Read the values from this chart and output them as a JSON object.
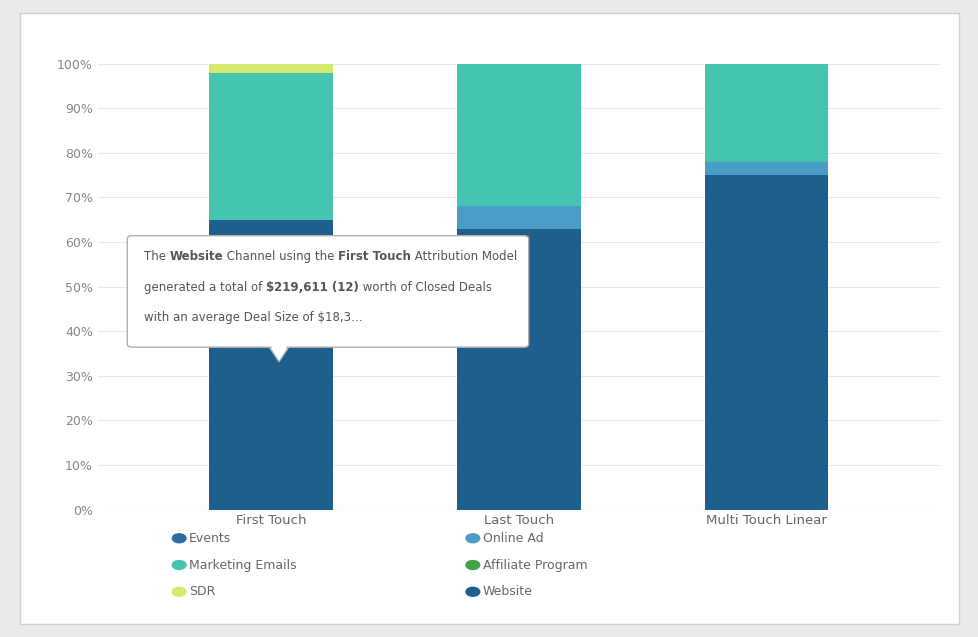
{
  "categories": [
    "First Touch",
    "Last Touch",
    "Multi Touch Linear"
  ],
  "segments": {
    "Website": {
      "values": [
        65.0,
        63.0,
        75.0
      ],
      "color": "#1e5f8e"
    },
    "Online Ad": {
      "values": [
        0.0,
        5.0,
        3.0
      ],
      "color": "#4a9cc7"
    },
    "Marketing Emails": {
      "values": [
        33.0,
        32.0,
        22.0
      ],
      "color": "#45c4b0"
    },
    "SDR": {
      "values": [
        2.0,
        0.0,
        0.0
      ],
      "color": "#d6e96c"
    },
    "Affiliate Program": {
      "values": [
        0.0,
        0.0,
        0.0
      ],
      "color": "#43a047"
    },
    "Events": {
      "values": [
        0.0,
        0.0,
        0.0
      ],
      "color": "#2e6da4"
    }
  },
  "segment_order": [
    "Website",
    "Online Ad",
    "Marketing Emails",
    "SDR",
    "Affiliate Program",
    "Events"
  ],
  "legend_items": [
    {
      "label": "Events",
      "color": "#2e6da4"
    },
    {
      "label": "Marketing Emails",
      "color": "#45c4b0"
    },
    {
      "label": "SDR",
      "color": "#d6e96c"
    },
    {
      "label": "Online Ad",
      "color": "#4a9cc7"
    },
    {
      "label": "Affiliate Program",
      "color": "#43a047"
    },
    {
      "label": "Website",
      "color": "#1e5f8e"
    }
  ],
  "background_color": "#ebebeb",
  "card_color": "#ffffff",
  "plot_background": "#ffffff",
  "grid_color": "#e8e8e8",
  "bar_width": 0.5,
  "ylim": [
    0,
    100
  ],
  "yticks": [
    0,
    10,
    20,
    30,
    40,
    50,
    60,
    70,
    80,
    90,
    100
  ],
  "ytick_labels": [
    "0%",
    "10%",
    "20%",
    "30%",
    "40%",
    "50%",
    "60%",
    "70%",
    "80%",
    "90%",
    "100%"
  ],
  "xlabel": "",
  "ylabel": "",
  "tooltip": {
    "line1": [
      [
        "The ",
        false
      ],
      [
        "Website",
        true
      ],
      [
        " Channel using the ",
        false
      ],
      [
        "First Touch",
        true
      ],
      [
        " Attribution Model",
        false
      ]
    ],
    "line2": [
      [
        "generated a total of ",
        false
      ],
      [
        "$219,611 (12)",
        true
      ],
      [
        " worth of Closed Deals",
        false
      ]
    ],
    "line3": [
      [
        "with an average Deal Size of $18,3…",
        false
      ]
    ]
  }
}
